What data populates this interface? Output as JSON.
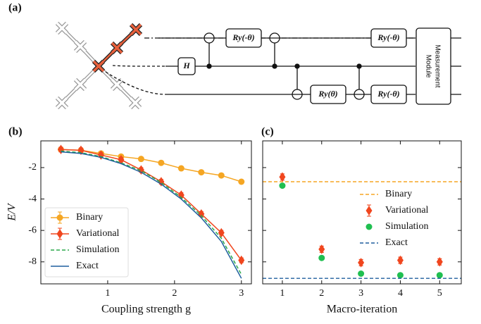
{
  "circuit": {
    "label": "(a)",
    "hadamard": "H",
    "gates": [
      "Ry(-θ)",
      "Ry(-θ)",
      "Ry(θ)",
      "Ry(-θ)"
    ],
    "module": [
      "Measurement",
      "Module"
    ]
  },
  "chart_data": [
    {
      "type": "line",
      "label": "(b)",
      "xlabel": "Coupling strength g",
      "ylabel": "E/V",
      "x": [
        0.3,
        0.6,
        0.9,
        1.2,
        1.5,
        1.8,
        2.1,
        2.4,
        2.7,
        3.0
      ],
      "xlim": [
        0,
        3.15
      ],
      "ylim": [
        -9.4,
        -0.3
      ],
      "xticks": [
        1,
        2,
        3
      ],
      "yticks": [
        -8,
        -6,
        -4,
        -2
      ],
      "legend": "lower left",
      "series": [
        {
          "name": "Binary",
          "color": "#f5a623",
          "marker": "circle",
          "values": [
            -0.85,
            -0.9,
            -1.1,
            -1.3,
            -1.45,
            -1.7,
            -2.05,
            -2.3,
            -2.5,
            -2.9
          ],
          "errors": [
            0.12,
            0.12,
            0.12,
            0.12,
            0.12,
            0.12,
            0.12,
            0.12,
            0.12,
            0.12
          ]
        },
        {
          "name": "Variational",
          "color": "#f0461e",
          "marker": "diamond",
          "values": [
            -0.85,
            -0.9,
            -1.2,
            -1.5,
            -2.15,
            -2.9,
            -3.75,
            -4.95,
            -6.15,
            -7.9
          ],
          "errors": [
            0.15,
            0.15,
            0.15,
            0.15,
            0.15,
            0.15,
            0.15,
            0.15,
            0.15,
            0.15
          ]
        },
        {
          "name": "Simulation",
          "color": "#2aa84a",
          "style": "dashed",
          "values": [
            -0.95,
            -1.05,
            -1.3,
            -1.7,
            -2.2,
            -2.95,
            -3.9,
            -5.05,
            -6.5,
            -8.8
          ]
        },
        {
          "name": "Exact",
          "color": "#1f5f9e",
          "values": [
            -1.0,
            -1.1,
            -1.35,
            -1.75,
            -2.3,
            -3.05,
            -4.0,
            -5.2,
            -6.7,
            -9.05
          ]
        }
      ]
    },
    {
      "type": "scatter",
      "label": "(c)",
      "xlabel": "Macro-iteration",
      "x": [
        1,
        2,
        3,
        4,
        5
      ],
      "xlim": [
        0.5,
        5.55
      ],
      "ylim": [
        -9.4,
        -0.3
      ],
      "xticks": [
        1,
        2,
        3,
        4,
        5
      ],
      "yticks": [
        -8,
        -6,
        -4,
        -2
      ],
      "ytick_labels": false,
      "legend": "center right",
      "series": [
        {
          "name": "Binary",
          "color": "#f5a623",
          "style": "dashed",
          "hline": true,
          "values": [
            -2.9
          ]
        },
        {
          "name": "Variational",
          "color": "#f0461e",
          "marker": "diamond",
          "values": [
            -2.6,
            -7.2,
            -8.05,
            -7.9,
            -8.0
          ],
          "errors": [
            0.2,
            0.2,
            0.2,
            0.2,
            0.2
          ]
        },
        {
          "name": "Simulation",
          "color": "#1fbf50",
          "marker": "circle",
          "values": [
            -3.15,
            -7.75,
            -8.75,
            -8.85,
            -8.85
          ]
        },
        {
          "name": "Exact",
          "color": "#1f5f9e",
          "style": "dashed",
          "hline": true,
          "values": [
            -9.05
          ]
        }
      ]
    }
  ]
}
